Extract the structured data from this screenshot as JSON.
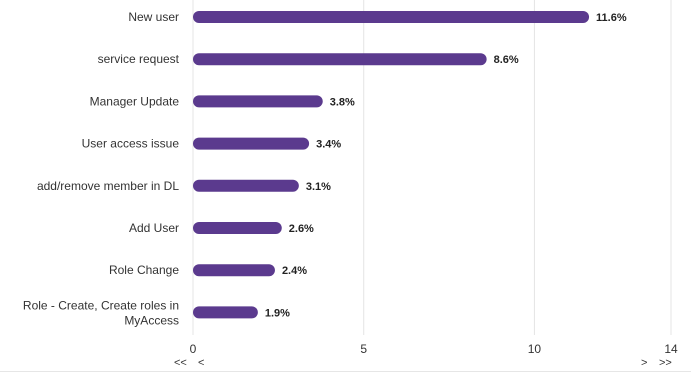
{
  "chart_data": {
    "type": "bar",
    "orientation": "horizontal",
    "categories": [
      "New user",
      "service request",
      "Manager Update",
      "User access issue",
      "add/remove member in DL",
      "Add User",
      "Role Change",
      "Role - Create, Create roles in MyAccess"
    ],
    "values": [
      11.6,
      8.6,
      3.8,
      3.4,
      3.1,
      2.6,
      2.4,
      1.9
    ],
    "value_labels": [
      "11.6%",
      "8.6%",
      "3.8%",
      "3.4%",
      "3.1%",
      "2.6%",
      "2.4%",
      "1.9%"
    ],
    "xlim": [
      0,
      14
    ],
    "x_ticks": [
      "0",
      "5",
      "10",
      "14"
    ],
    "grid": true,
    "bar_color": "#5b3a8e"
  },
  "pagination": {
    "first": "<<",
    "prev": "<",
    "next": ">",
    "last": ">>"
  }
}
